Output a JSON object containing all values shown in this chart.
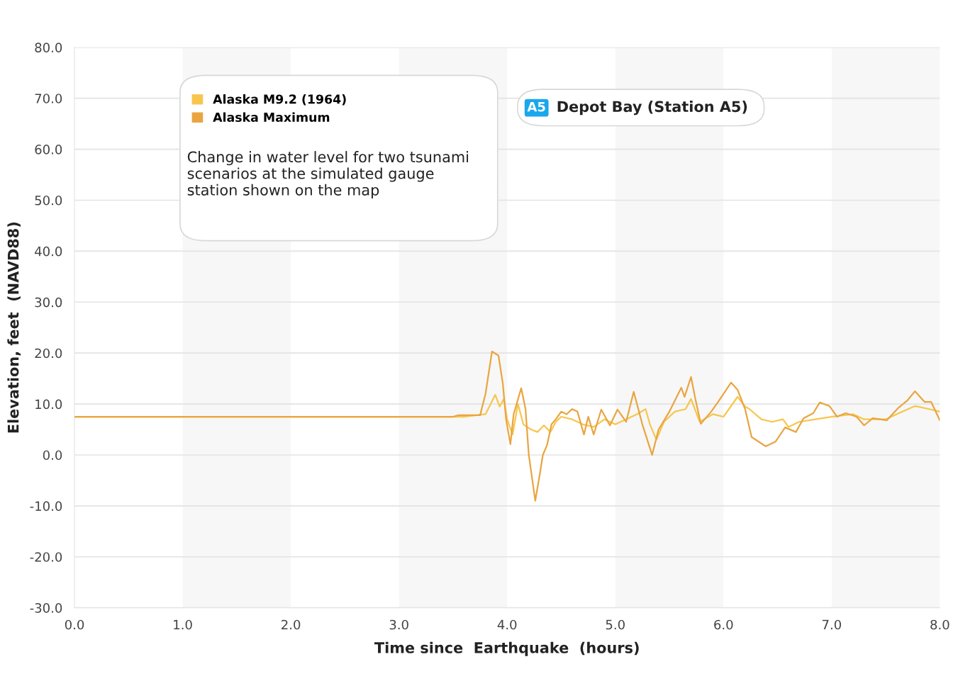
{
  "chart_data": {
    "type": "line",
    "xlabel": "Time since  Earthquake  (hours)",
    "ylabel": "Elevation, feet  (NAVD88)",
    "xlim": [
      0,
      8
    ],
    "ylim": [
      -30,
      80
    ],
    "xticks": [
      {
        "value": 0,
        "label": "0.0"
      },
      {
        "value": 1,
        "label": "1.0"
      },
      {
        "value": 2,
        "label": "2.0"
      },
      {
        "value": 3,
        "label": "3.0"
      },
      {
        "value": 4,
        "label": "4.0"
      },
      {
        "value": 5,
        "label": "5.0"
      },
      {
        "value": 6,
        "label": "6.0"
      },
      {
        "value": 7,
        "label": "7.0"
      },
      {
        "value": 8,
        "label": "8.0"
      }
    ],
    "yticks": [
      {
        "value": -30,
        "label": "-30.0"
      },
      {
        "value": -20,
        "label": "-20.0"
      },
      {
        "value": -10,
        "label": "-10.0"
      },
      {
        "value": 0,
        "label": "0.0"
      },
      {
        "value": 10,
        "label": "10.0"
      },
      {
        "value": 20,
        "label": "20.0"
      },
      {
        "value": 30,
        "label": "30.0"
      },
      {
        "value": 40,
        "label": "40.0"
      },
      {
        "value": 50,
        "label": "50.0"
      },
      {
        "value": 60,
        "label": "60.0"
      },
      {
        "value": 70,
        "label": "70.0"
      },
      {
        "value": 80,
        "label": "80.0"
      }
    ],
    "grid": "y",
    "legend": "top left",
    "marker": "none",
    "line_style": "solid",
    "bands": [
      {
        "axis": "x",
        "from": 1,
        "to": 2,
        "color": "#f7f7f7"
      },
      {
        "axis": "x",
        "from": 3,
        "to": 4,
        "color": "#f7f7f7"
      },
      {
        "axis": "x",
        "from": 5,
        "to": 6,
        "color": "#f7f7f7"
      },
      {
        "axis": "x",
        "from": 7,
        "to": 8,
        "color": "#f7f7f7"
      }
    ],
    "annotations": [
      "Change in water level for two tsunami scenarios at the simulated gauge station shown on the map",
      "A5",
      "Depot Bay (Station A5)"
    ],
    "series": [
      {
        "name": "Alaska M9.2 (1964)",
        "color": "#f7c64e",
        "x": [
          0,
          3.6,
          3.8,
          3.89,
          3.93,
          3.97,
          4.0,
          4.05,
          4.1,
          4.15,
          4.22,
          4.28,
          4.34,
          4.4,
          4.45,
          4.5,
          4.6,
          4.7,
          4.8,
          4.9,
          5.0,
          5.1,
          5.2,
          5.28,
          5.32,
          5.38,
          5.45,
          5.55,
          5.65,
          5.7,
          5.78,
          5.9,
          6.0,
          6.05,
          6.13,
          6.2,
          6.24,
          6.35,
          6.45,
          6.55,
          6.6,
          6.7,
          6.85,
          7.0,
          7.2,
          7.3,
          7.5,
          7.6,
          7.77,
          7.9,
          8.0
        ],
        "values": [
          7.5,
          7.5,
          8,
          11.8,
          9.5,
          11,
          7,
          4,
          10,
          6,
          5,
          4.5,
          5.8,
          4.5,
          6.5,
          7.5,
          7,
          6,
          5.5,
          7,
          6,
          7,
          8,
          9,
          6,
          3,
          6.5,
          8.5,
          9,
          11,
          6.5,
          8,
          7.5,
          9,
          11.4,
          9.5,
          9,
          7,
          6.5,
          7,
          5.5,
          6.5,
          7,
          7.5,
          8,
          7,
          7,
          8,
          9.6,
          9,
          8.5
        ]
      },
      {
        "name": "Alaska Maximum",
        "color": "#e9a540",
        "x": [
          0,
          3.5,
          3.55,
          3.75,
          3.8,
          3.86,
          3.92,
          3.96,
          3.99,
          4.03,
          4.06,
          4.13,
          4.17,
          4.2,
          4.26,
          4.3,
          4.33,
          4.37,
          4.41,
          4.45,
          4.5,
          4.55,
          4.6,
          4.65,
          4.71,
          4.75,
          4.8,
          4.87,
          4.95,
          5.02,
          5.1,
          5.17,
          5.25,
          5.34,
          5.4,
          5.5,
          5.61,
          5.64,
          5.7,
          5.74,
          5.79,
          5.89,
          5.95,
          6.07,
          6.13,
          6.2,
          6.26,
          6.39,
          6.48,
          6.57,
          6.67,
          6.74,
          6.83,
          6.89,
          6.98,
          7.05,
          7.13,
          7.23,
          7.3,
          7.38,
          7.51,
          7.62,
          7.7,
          7.77,
          7.86,
          7.92,
          8.0
        ],
        "values": [
          7.5,
          7.5,
          7.8,
          7.8,
          12,
          20.3,
          19.5,
          14,
          7,
          2.1,
          8,
          13.1,
          9,
          0,
          -9,
          -4,
          0,
          2,
          6,
          7,
          8.5,
          8,
          9,
          8.5,
          4,
          7.5,
          4,
          8.9,
          5.8,
          8.9,
          6.5,
          12.4,
          6,
          0,
          5,
          8.5,
          13.2,
          11.4,
          15.3,
          11,
          6.1,
          8.6,
          10.4,
          14.2,
          12.8,
          9,
          3.5,
          1.7,
          2.6,
          5.4,
          4.5,
          7.2,
          8.2,
          10.3,
          9.6,
          7.5,
          8.2,
          7.5,
          5.8,
          7.2,
          6.8,
          9.3,
          10.7,
          12.5,
          10.4,
          10.4,
          6.8
        ]
      }
    ]
  }
}
